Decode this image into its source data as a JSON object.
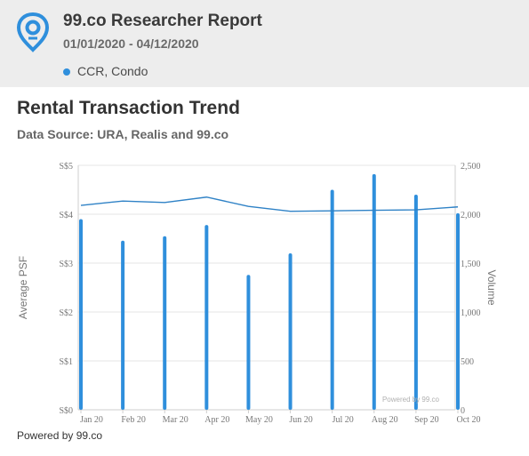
{
  "report": {
    "title": "99.co Researcher Report",
    "dates": "01/01/2020 - 04/12/2020",
    "filter": "CCR, Condo",
    "logo_icon": "map-pin-logo-icon",
    "accent_color": "#2f8fdc"
  },
  "footer": {
    "powered_by": "Powered by 99.co"
  },
  "chart_data": {
    "type": "bar",
    "title": "Rental Transaction Trend",
    "subtitle": "Data Source: URA, Realis and 99.co",
    "ylabel": "Average PSF",
    "y2label": "Volume",
    "categories": [
      "Jan 20",
      "Feb 20",
      "Mar 20",
      "Apr 20",
      "May 20",
      "Jun 20",
      "Jul 20",
      "Aug 20",
      "Sep 20",
      "Oct 20"
    ],
    "ylim": [
      0,
      5
    ],
    "y_ticks": [
      "S$0",
      "S$1",
      "S$2",
      "S$3",
      "S$4",
      "S$5"
    ],
    "y2lim": [
      0,
      2500
    ],
    "y2_ticks": [
      "0",
      "500",
      "1,000",
      "1,500",
      "2,000",
      "2,500"
    ],
    "series": [
      {
        "type": "bar",
        "axis": "right",
        "color": "#2f8fdc",
        "values": [
          1950,
          1730,
          1775,
          1890,
          1380,
          1600,
          2250,
          2410,
          2200,
          2010
        ]
      },
      {
        "type": "line",
        "axis": "left",
        "color": "#2f82c6",
        "values": [
          4.18,
          4.27,
          4.24,
          4.35,
          4.16,
          4.06,
          4.07,
          4.08,
          4.09,
          4.15
        ]
      }
    ],
    "grid": true,
    "watermark": "Powered by 99.co"
  }
}
